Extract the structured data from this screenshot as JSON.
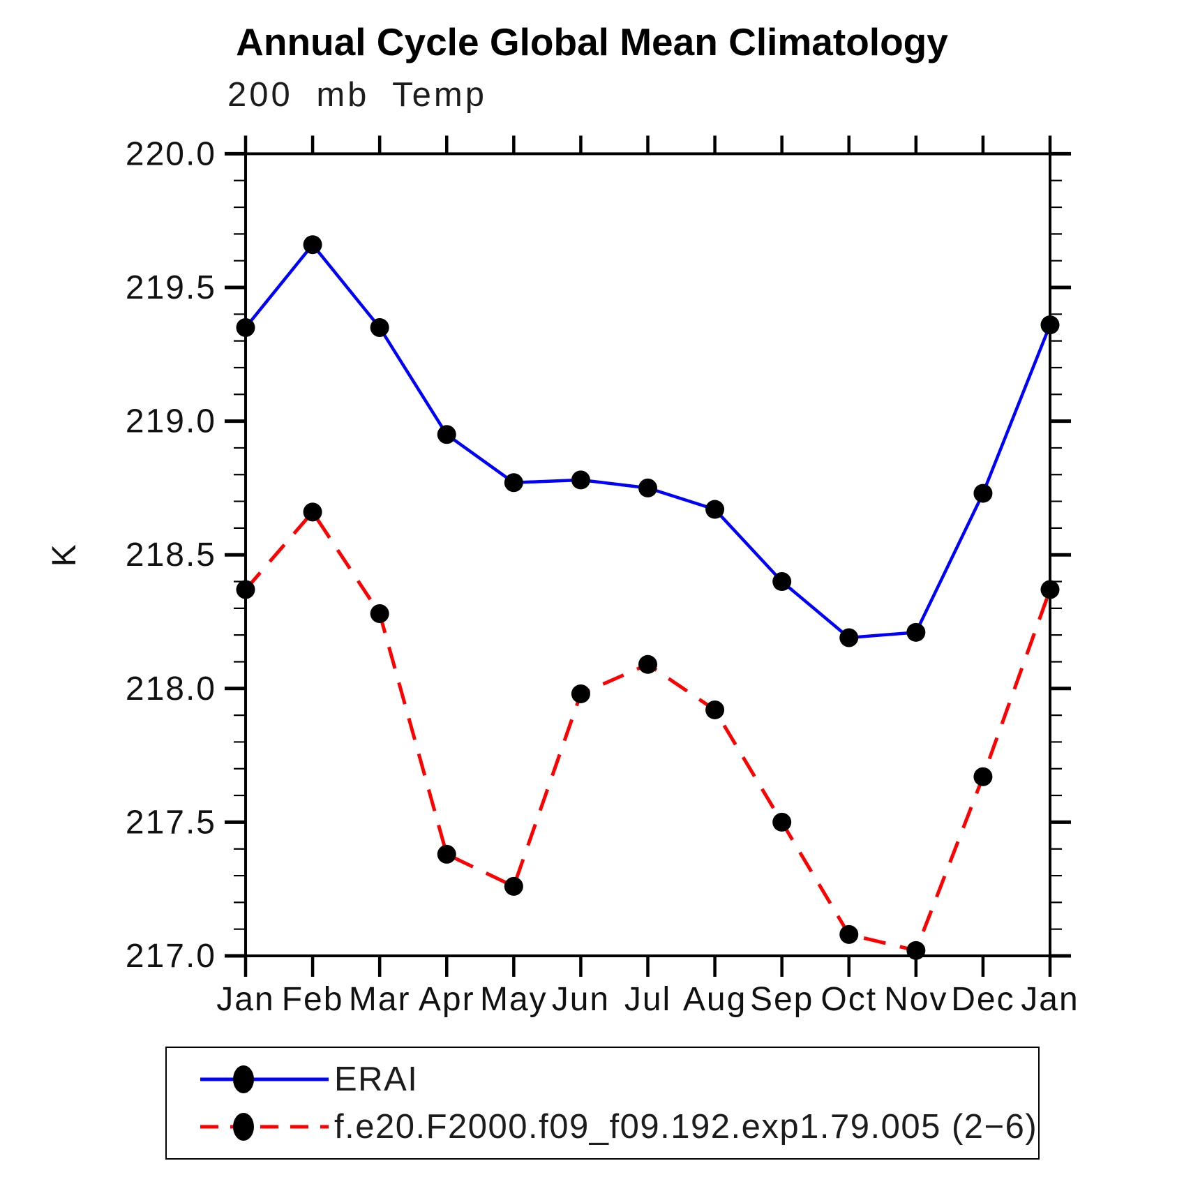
{
  "header": {
    "title": "Annual Cycle Global Mean Climatology",
    "subtitle": "200 mb Temp"
  },
  "chart_data": {
    "type": "line",
    "title": "Annual Cycle Global Mean Climatology",
    "subtitle": "200 mb Temp",
    "xlabel": "",
    "ylabel": "K",
    "categories": [
      "Jan",
      "Feb",
      "Mar",
      "Apr",
      "May",
      "Jun",
      "Jul",
      "Aug",
      "Sep",
      "Oct",
      "Nov",
      "Dec",
      "Jan"
    ],
    "series": [
      {
        "name": "ERAI",
        "color": "#0000ff",
        "line_style": "solid",
        "marker": "filled-circle",
        "marker_color": "#000000",
        "values": [
          219.35,
          219.66,
          219.35,
          218.95,
          218.77,
          218.78,
          218.75,
          218.67,
          218.4,
          218.19,
          218.21,
          218.73,
          219.36
        ]
      },
      {
        "name": "f.e20.F2000.f09_f09.192.exp1.79.005 (2−6)",
        "color": "#ff0000",
        "line_style": "dashed",
        "marker": "filled-circle",
        "marker_color": "#000000",
        "values": [
          218.37,
          218.66,
          218.28,
          217.38,
          217.26,
          217.98,
          218.09,
          217.92,
          217.5,
          217.08,
          217.02,
          217.67,
          218.37
        ]
      }
    ],
    "ylim": [
      217.0,
      220.0
    ],
    "ytick_major": 0.5,
    "ytick_minor": 0.1,
    "ytick_labels": [
      "220.0",
      "219.5",
      "219.0",
      "218.5",
      "218.0",
      "217.5",
      "217.0"
    ],
    "grid": false,
    "legend_position": "bottom-box",
    "axis_color": "#000000"
  }
}
